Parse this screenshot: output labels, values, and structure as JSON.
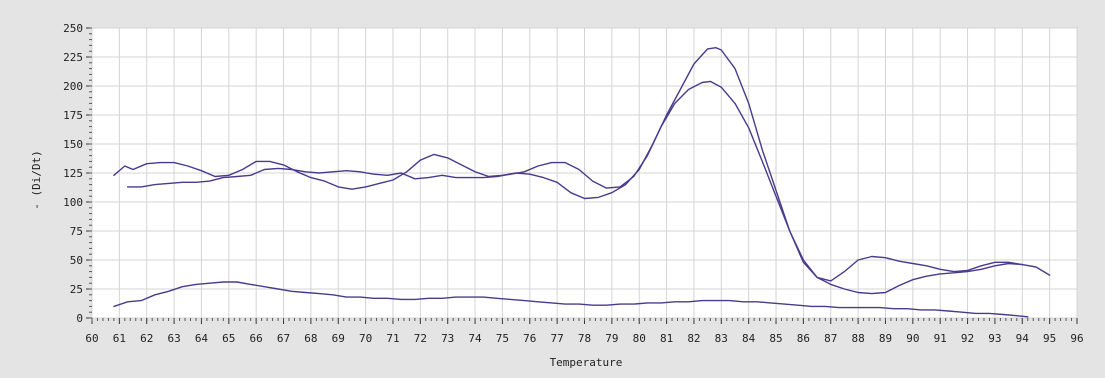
{
  "chart_data": {
    "type": "line",
    "title": "",
    "xlabel": "Temperature",
    "ylabel": "- (Di/Dt)",
    "xlim": [
      60,
      96
    ],
    "ylim": [
      0,
      250
    ],
    "x_ticks": [
      60,
      61,
      62,
      63,
      64,
      65,
      66,
      67,
      68,
      69,
      70,
      71,
      72,
      73,
      74,
      75,
      76,
      77,
      78,
      79,
      80,
      81,
      82,
      83,
      84,
      85,
      86,
      87,
      88,
      89,
      90,
      91,
      92,
      93,
      94,
      95,
      96
    ],
    "y_ticks": [
      0,
      25,
      50,
      75,
      100,
      125,
      150,
      175,
      200,
      225,
      250
    ],
    "grid": true,
    "line_color": "#4b3a8c",
    "series": [
      {
        "x": [
          60.8,
          61.2,
          61.5,
          62.0,
          62.5,
          63.0,
          63.5,
          64.0,
          64.5,
          65.0,
          65.5,
          66.0,
          66.5,
          67.0,
          67.5,
          68.0,
          68.5,
          69.0,
          69.5,
          70.0,
          70.5,
          71.0,
          71.5,
          72.0,
          72.5,
          73.0,
          73.5,
          74.0,
          74.5,
          75.0,
          75.5,
          76.0,
          76.5,
          77.0,
          77.5,
          78.0,
          78.5,
          79.0,
          79.5,
          80.0,
          80.5,
          81.0,
          81.5,
          82.0,
          82.5,
          82.8,
          83.0,
          83.5,
          84.0,
          84.5,
          85.0,
          85.5,
          86.0,
          86.5,
          87.0,
          87.5,
          88.0,
          88.5,
          89.0,
          89.5,
          90.0,
          90.5,
          91.0,
          91.5,
          92.0,
          92.5,
          93.0,
          93.5,
          94.0
        ],
        "values": [
          123,
          131,
          128,
          133,
          134,
          134,
          131,
          127,
          122,
          123,
          128,
          135,
          135,
          132,
          126,
          121,
          118,
          113,
          111,
          113,
          116,
          119,
          126,
          136,
          141,
          138,
          132,
          126,
          122,
          123,
          125,
          124,
          121,
          117,
          108,
          103,
          104,
          108,
          115,
          128,
          150,
          175,
          197,
          219,
          232,
          233,
          231,
          215,
          185,
          145,
          110,
          75,
          48,
          35,
          29,
          25,
          22,
          21,
          22,
          28,
          33,
          36,
          38,
          39,
          40,
          42,
          45,
          47,
          46
        ]
      },
      {
        "x": [
          61.3,
          61.8,
          62.3,
          62.8,
          63.3,
          63.8,
          64.3,
          64.8,
          65.3,
          65.8,
          66.3,
          66.8,
          67.3,
          67.8,
          68.3,
          68.8,
          69.3,
          69.8,
          70.3,
          70.8,
          71.3,
          71.8,
          72.3,
          72.8,
          73.3,
          73.8,
          74.3,
          74.8,
          75.3,
          75.8,
          76.3,
          76.8,
          77.3,
          77.8,
          78.3,
          78.8,
          79.3,
          79.8,
          80.3,
          80.8,
          81.3,
          81.8,
          82.3,
          82.6,
          83.0,
          83.5,
          84.0,
          84.5,
          85.0,
          85.5,
          86.0,
          86.5,
          87.0,
          87.5,
          88.0,
          88.5,
          89.0,
          89.5,
          90.0,
          90.5,
          91.0,
          91.5,
          92.0,
          92.5,
          93.0,
          93.5,
          94.0,
          94.5,
          95.0
        ],
        "values": [
          113,
          113,
          115,
          116,
          117,
          117,
          118,
          121,
          122,
          123,
          128,
          129,
          128,
          126,
          125,
          126,
          127,
          126,
          124,
          123,
          125,
          120,
          121,
          123,
          121,
          121,
          121,
          122,
          124,
          126,
          131,
          134,
          134,
          128,
          118,
          112,
          113,
          122,
          140,
          165,
          185,
          197,
          203,
          204,
          199,
          185,
          164,
          135,
          105,
          75,
          50,
          35,
          32,
          40,
          50,
          53,
          52,
          49,
          47,
          45,
          42,
          40,
          41,
          45,
          48,
          48,
          46,
          44,
          37
        ]
      },
      {
        "x": [
          60.8,
          61.3,
          61.8,
          62.3,
          62.8,
          63.3,
          63.8,
          64.3,
          64.8,
          65.3,
          65.8,
          66.3,
          66.8,
          67.3,
          67.8,
          68.3,
          68.8,
          69.3,
          69.8,
          70.3,
          70.8,
          71.3,
          71.8,
          72.3,
          72.8,
          73.3,
          73.8,
          74.3,
          74.8,
          75.3,
          75.8,
          76.3,
          76.8,
          77.3,
          77.8,
          78.3,
          78.8,
          79.3,
          79.8,
          80.3,
          80.8,
          81.3,
          81.8,
          82.3,
          82.8,
          83.3,
          83.8,
          84.3,
          84.8,
          85.3,
          85.8,
          86.3,
          86.8,
          87.3,
          87.8,
          88.3,
          88.8,
          89.3,
          89.8,
          90.3,
          90.8,
          91.3,
          91.8,
          92.3,
          92.8,
          93.3,
          93.8,
          94.2
        ],
        "values": [
          10,
          14,
          15,
          20,
          23,
          27,
          29,
          30,
          31,
          31,
          29,
          27,
          25,
          23,
          22,
          21,
          20,
          18,
          18,
          17,
          17,
          16,
          16,
          17,
          17,
          18,
          18,
          18,
          17,
          16,
          15,
          14,
          13,
          12,
          12,
          11,
          11,
          12,
          12,
          13,
          13,
          14,
          14,
          15,
          15,
          15,
          14,
          14,
          13,
          12,
          11,
          10,
          10,
          9,
          9,
          9,
          9,
          8,
          8,
          7,
          7,
          6,
          5,
          4,
          4,
          3,
          2,
          1
        ]
      }
    ]
  }
}
